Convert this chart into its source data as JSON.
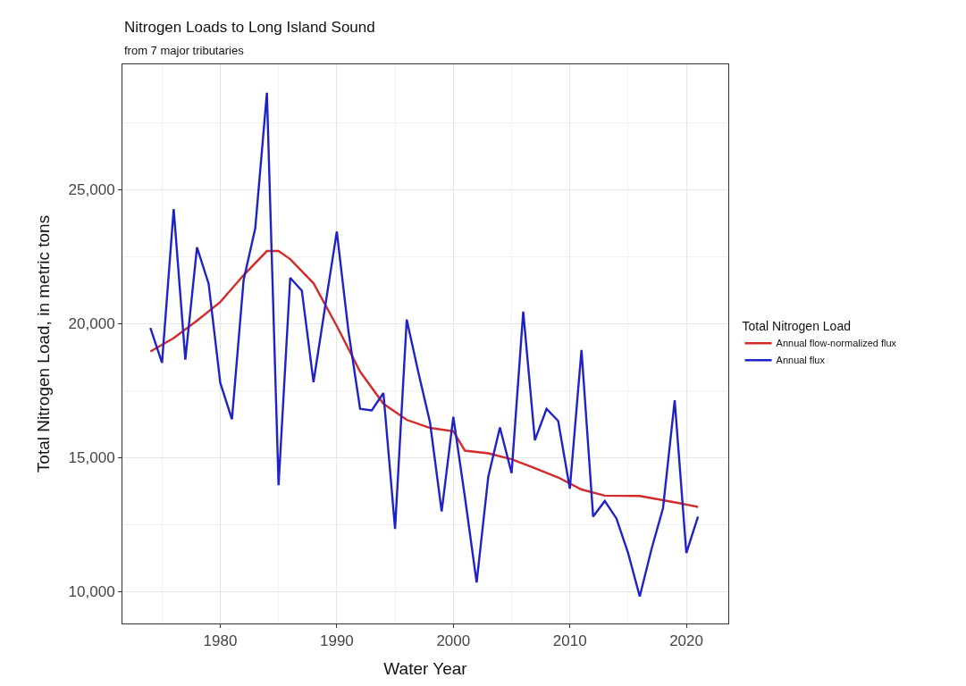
{
  "chart_data": {
    "type": "line",
    "title": "Nitrogen Loads to Long Island Sound",
    "subtitle": "from 7 major tributaries",
    "xlabel": "Water Year",
    "ylabel": "Total Nitrogen Load, in metric tons",
    "legend_title": "Total Nitrogen Load",
    "series": [
      {
        "name": "Annual flow-normalized flux",
        "color": "#d42a2a",
        "x": [
          1974,
          1976,
          1978,
          1980,
          1982,
          1984,
          1985,
          1986,
          1988,
          1990,
          1992,
          1994,
          1996,
          1998,
          2000,
          2001,
          2003,
          2005,
          2007,
          2009,
          2011,
          2013,
          2016,
          2018,
          2020,
          2021
        ],
        "values": [
          18950,
          19450,
          20100,
          20800,
          21800,
          22700,
          22700,
          22400,
          21500,
          19900,
          18200,
          17000,
          16400,
          16100,
          15970,
          15250,
          15150,
          14930,
          14600,
          14250,
          13800,
          13570,
          13560,
          13400,
          13240,
          13150
        ]
      },
      {
        "name": "Annual flux",
        "color": "#1f22c8",
        "x": [
          1974,
          1975,
          1976,
          1977,
          1978,
          1979,
          1980,
          1981,
          1982,
          1983,
          1984,
          1985,
          1986,
          1987,
          1988,
          1989,
          1990,
          1991,
          1992,
          1993,
          1994,
          1995,
          1996,
          1997,
          1998,
          1999,
          2000,
          2001,
          2002,
          2003,
          2004,
          2005,
          2006,
          2007,
          2008,
          2009,
          2010,
          2011,
          2012,
          2013,
          2014,
          2015,
          2016,
          2017,
          2018,
          2019,
          2020,
          2021
        ],
        "values": [
          19830,
          18530,
          24270,
          18650,
          22840,
          21480,
          17780,
          16420,
          21610,
          23550,
          28610,
          13960,
          21700,
          21220,
          17810,
          20630,
          23430,
          19700,
          16810,
          16750,
          17400,
          12330,
          20140,
          18170,
          16300,
          12980,
          16510,
          13500,
          10330,
          14280,
          16120,
          14410,
          20440,
          15640,
          16810,
          16360,
          13830,
          19010,
          12790,
          13370,
          12720,
          11430,
          9810,
          11560,
          13110,
          17130,
          11430,
          12790
        ]
      }
    ],
    "xlim": [
      1971.6,
      2023.6
    ],
    "xticks": [
      1980,
      1990,
      2000,
      2010,
      2020
    ],
    "ylim": [
      8800,
      29670
    ],
    "yticks": [
      {
        "value": 10000,
        "label": "10,000"
      },
      {
        "value": 15000,
        "label": "15,000"
      },
      {
        "value": 20000,
        "label": "20,000"
      },
      {
        "value": 25000,
        "label": "25,000"
      }
    ],
    "grid": true,
    "legend": "right",
    "line_style": "solid",
    "marker": "none"
  }
}
